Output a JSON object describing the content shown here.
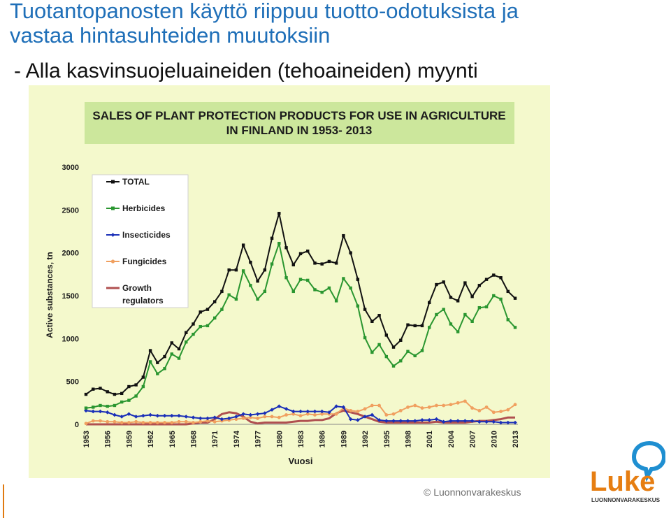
{
  "page": {
    "title_line1": "Tuotantopanosten käyttö riippuu tuotto-odotuksista ja",
    "title_line2": "vastaa hintasuhteiden muutoksiin",
    "subtitle": "- Alla kasvinsuojeluaineiden (tehoaineiden) myynti",
    "copyright": "© Luonnonvarakeskus",
    "logo_text": "Luke",
    "logo_subtext": "LUONNONVARAKESKUS",
    "colors": {
      "title": "#1f6fb8",
      "logo_orange": "#e67e12",
      "logo_blue": "#1f8fd1",
      "chart_bg": "#f4f9cc"
    }
  },
  "chart_data": {
    "type": "line",
    "title_line1": "SALES OF PLANT PROTECTION PRODUCTS FOR USE IN AGRICULTURE",
    "title_line2": "IN FINLAND IN 1953- 2013",
    "xlabel": "Vuosi",
    "ylabel": "Active substances, tn",
    "ylim": [
      0,
      3000
    ],
    "yticks": [
      "0",
      "500",
      "1000",
      "1500",
      "2000",
      "2500",
      "3000"
    ],
    "xticks": [
      "1953",
      "1956",
      "1959",
      "1962",
      "1965",
      "1968",
      "1971",
      "1974",
      "1977",
      "1980",
      "1983",
      "1986",
      "1989",
      "1992",
      "1995",
      "1998",
      "2001",
      "2004",
      "2007",
      "2010",
      "2013"
    ],
    "grid": false,
    "legend_position": "top-left",
    "x": [
      1953,
      1954,
      1955,
      1956,
      1957,
      1958,
      1959,
      1960,
      1961,
      1962,
      1963,
      1964,
      1965,
      1966,
      1967,
      1968,
      1969,
      1970,
      1971,
      1972,
      1973,
      1974,
      1975,
      1976,
      1977,
      1978,
      1979,
      1980,
      1981,
      1982,
      1983,
      1984,
      1985,
      1986,
      1987,
      1988,
      1989,
      1990,
      1991,
      1992,
      1993,
      1994,
      1995,
      1996,
      1997,
      1998,
      1999,
      2000,
      2001,
      2002,
      2003,
      2004,
      2005,
      2006,
      2007,
      2008,
      2009,
      2010,
      2011,
      2012,
      2013
    ],
    "series": [
      {
        "name": "TOTAL",
        "color": "#111111",
        "marker": "square",
        "values": [
          350,
          410,
          420,
          380,
          350,
          360,
          440,
          460,
          550,
          860,
          720,
          790,
          950,
          880,
          1070,
          1170,
          1310,
          1340,
          1430,
          1550,
          1800,
          1800,
          2090,
          1890,
          1670,
          1800,
          2170,
          2460,
          2060,
          1860,
          1990,
          2020,
          1880,
          1870,
          1900,
          1880,
          2200,
          2000,
          1690,
          1340,
          1200,
          1270,
          1040,
          900,
          980,
          1160,
          1150,
          1150,
          1420,
          1630,
          1660,
          1480,
          1440,
          1650,
          1490,
          1620,
          1690,
          1740,
          1710,
          1550,
          1470
        ]
      },
      {
        "name": "Herbicides",
        "color": "#2a9630",
        "marker": "square",
        "values": [
          190,
          200,
          220,
          210,
          220,
          260,
          280,
          330,
          440,
          730,
          590,
          650,
          820,
          770,
          960,
          1050,
          1140,
          1150,
          1240,
          1340,
          1510,
          1460,
          1790,
          1620,
          1460,
          1550,
          1870,
          2110,
          1710,
          1550,
          1690,
          1680,
          1570,
          1540,
          1590,
          1440,
          1700,
          1590,
          1380,
          1010,
          840,
          930,
          790,
          680,
          740,
          850,
          800,
          860,
          1130,
          1280,
          1340,
          1170,
          1080,
          1280,
          1200,
          1360,
          1370,
          1500,
          1460,
          1220,
          1130
        ]
      },
      {
        "name": "Insecticides",
        "color": "#1a2fb8",
        "marker": "diamond",
        "values": [
          160,
          150,
          150,
          140,
          110,
          90,
          120,
          90,
          100,
          110,
          100,
          100,
          100,
          100,
          90,
          80,
          70,
          70,
          80,
          60,
          70,
          90,
          120,
          110,
          120,
          130,
          170,
          210,
          180,
          150,
          150,
          150,
          150,
          150,
          140,
          210,
          200,
          60,
          50,
          90,
          110,
          50,
          40,
          40,
          40,
          40,
          40,
          50,
          50,
          60,
          30,
          40,
          40,
          40,
          40,
          30,
          30,
          30,
          20,
          20,
          20
        ]
      },
      {
        "name": "Fungicides",
        "color": "#f0a060",
        "marker": "circle",
        "values": [
          10,
          40,
          40,
          30,
          30,
          20,
          20,
          30,
          20,
          20,
          20,
          20,
          20,
          30,
          30,
          20,
          30,
          40,
          30,
          40,
          50,
          60,
          70,
          80,
          70,
          90,
          90,
          80,
          110,
          120,
          100,
          120,
          110,
          120,
          120,
          120,
          190,
          160,
          150,
          180,
          220,
          220,
          110,
          120,
          160,
          200,
          220,
          190,
          200,
          220,
          220,
          230,
          250,
          270,
          190,
          160,
          200,
          140,
          150,
          170,
          230
        ]
      },
      {
        "name": "Growth regulators",
        "color": "#b05050",
        "marker": "none",
        "values": [
          0,
          0,
          0,
          0,
          0,
          0,
          0,
          0,
          0,
          0,
          0,
          0,
          0,
          0,
          0,
          10,
          20,
          20,
          60,
          120,
          140,
          130,
          90,
          30,
          10,
          20,
          20,
          20,
          20,
          30,
          40,
          40,
          50,
          50,
          70,
          130,
          160,
          140,
          120,
          90,
          60,
          30,
          20,
          20,
          20,
          20,
          20,
          20,
          20,
          30,
          20,
          20,
          20,
          20,
          30,
          40,
          40,
          50,
          60,
          80,
          80
        ]
      }
    ]
  }
}
